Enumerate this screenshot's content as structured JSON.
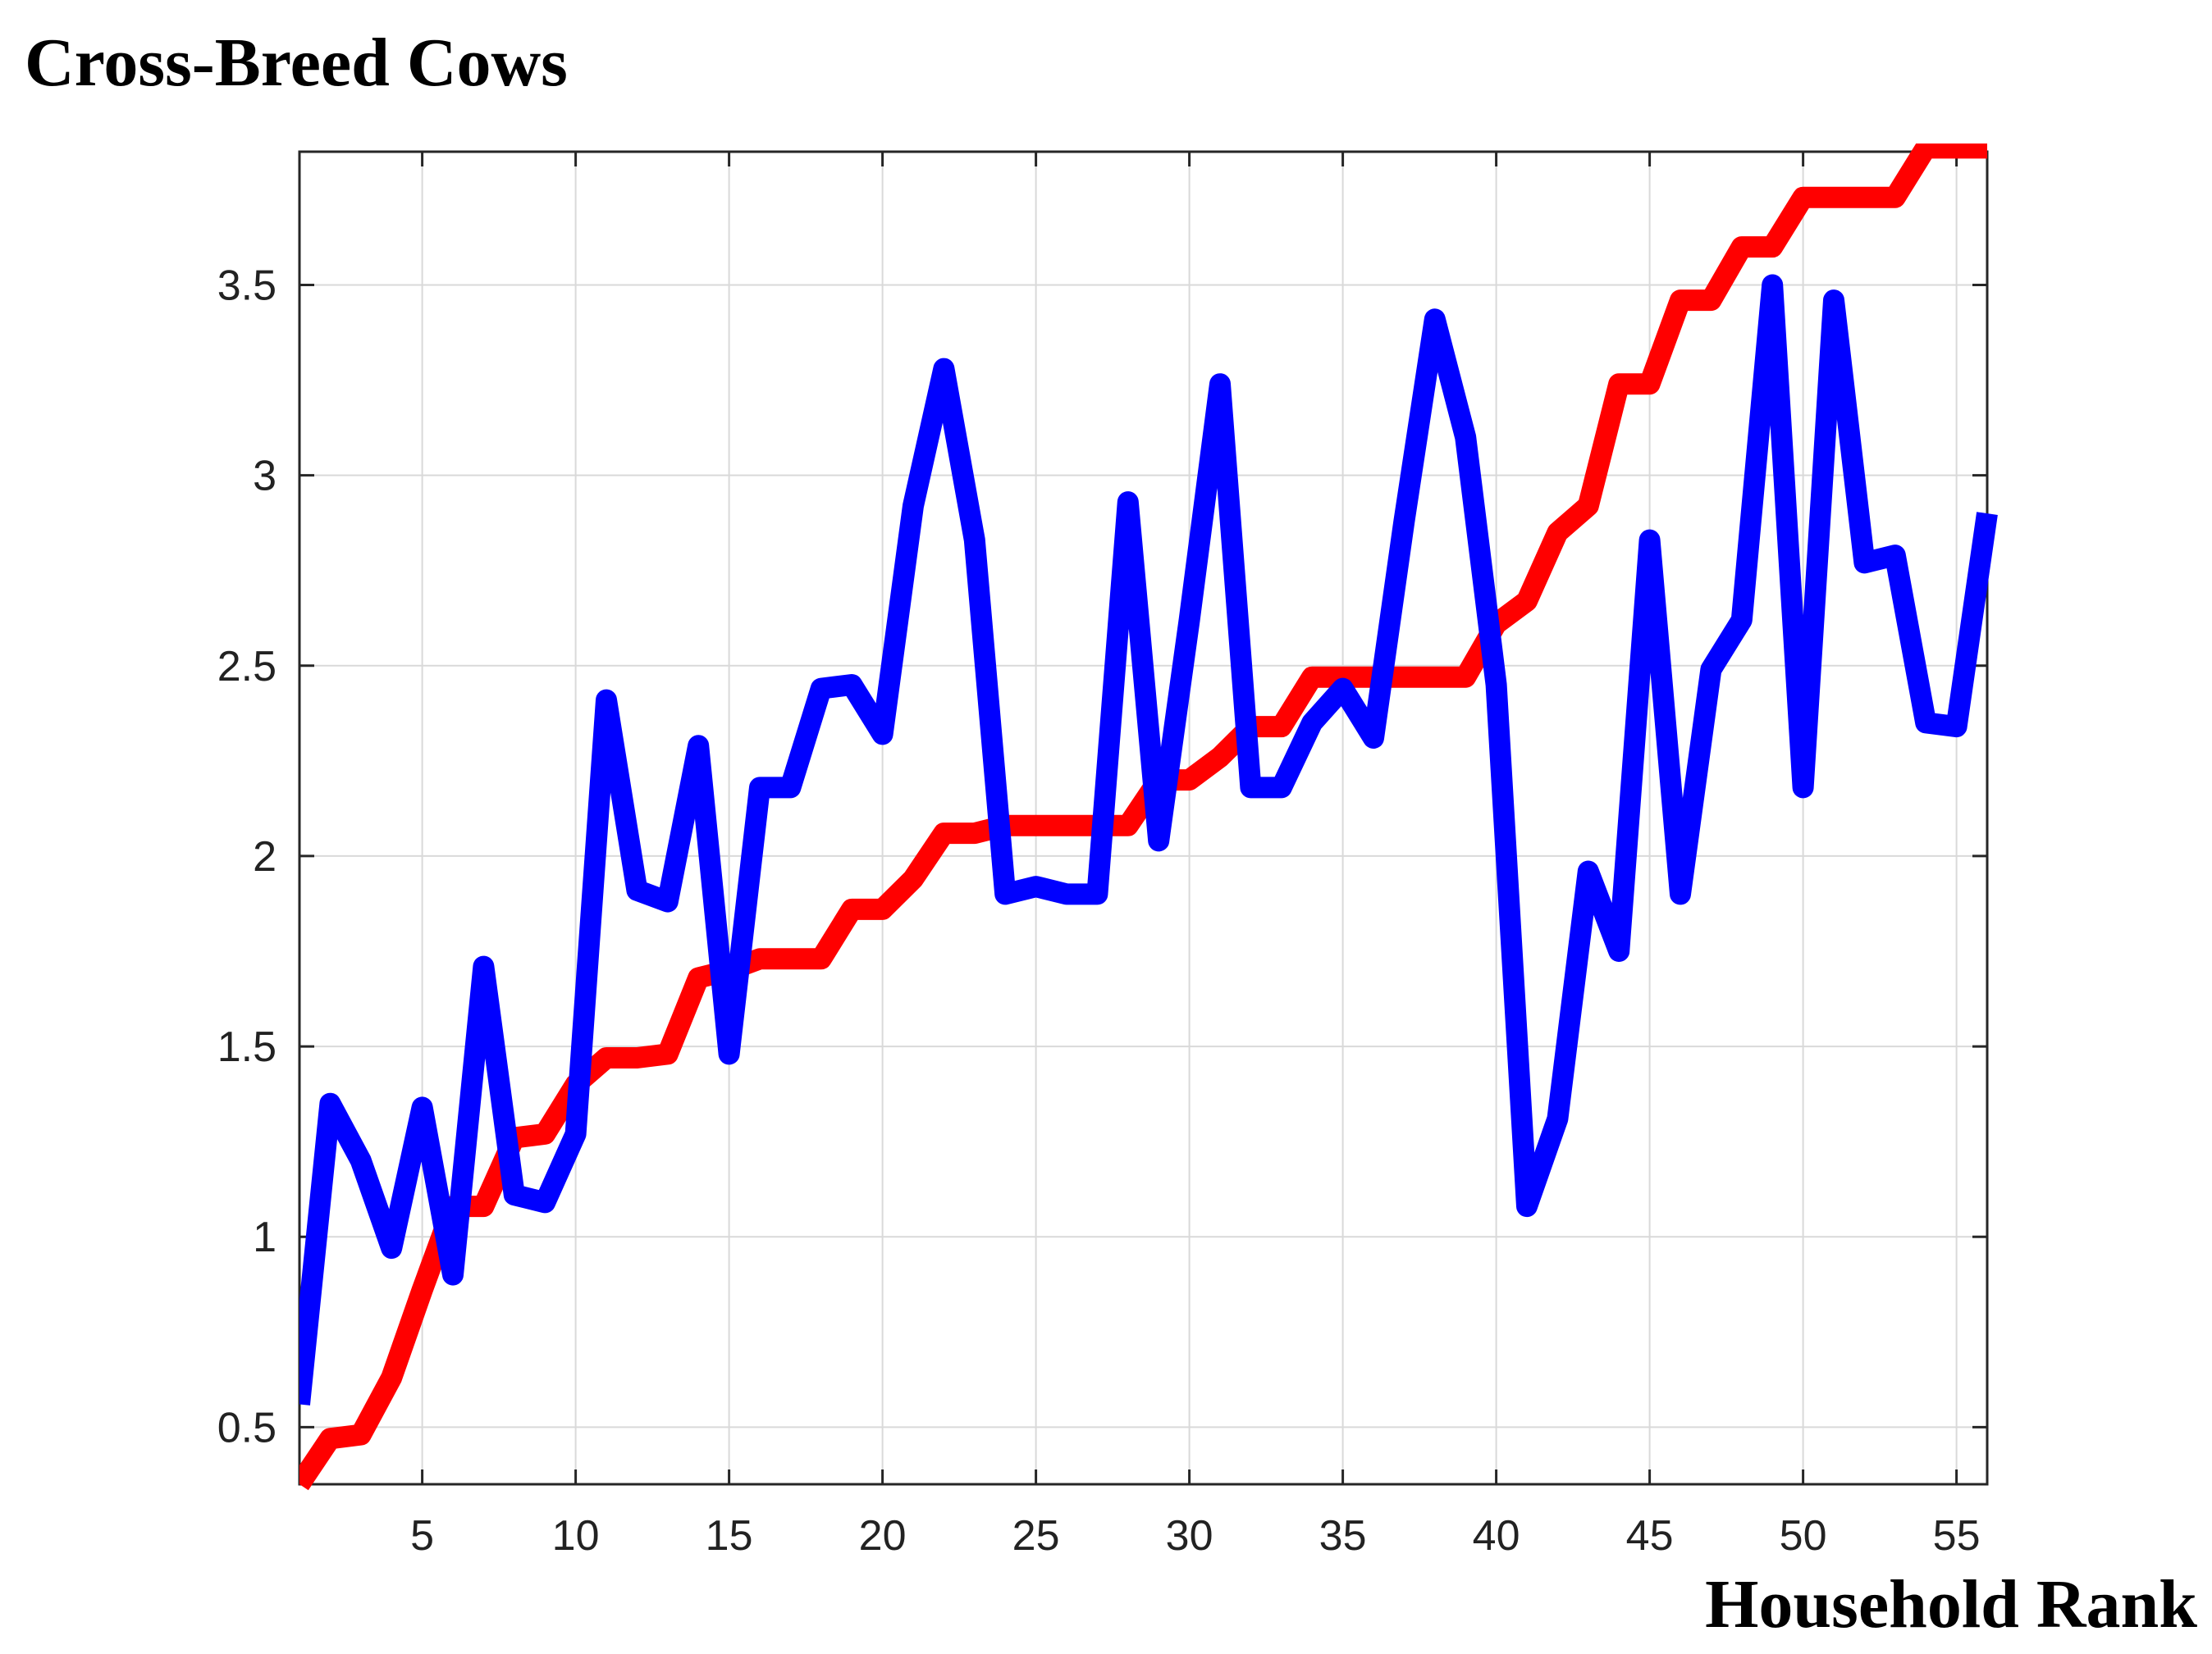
{
  "chart_data": {
    "type": "line",
    "title": "Cross-Breed Cows",
    "xlabel": "Household Rank",
    "ylabel": "",
    "xlim": [
      1,
      56
    ],
    "ylim": [
      0.35,
      3.85
    ],
    "xticks": [
      5,
      10,
      15,
      20,
      25,
      30,
      35,
      40,
      45,
      50,
      55
    ],
    "yticks": [
      0.5,
      1,
      1.5,
      2,
      2.5,
      3,
      3.5
    ],
    "ytick_labels": [
      "0.5",
      "1",
      "1.5",
      "2",
      "2.5",
      "3",
      "3.5"
    ],
    "grid": true,
    "series": [
      {
        "color": "#ff0000",
        "x": [
          1,
          2,
          3,
          4,
          5,
          6,
          7,
          8,
          9,
          10,
          11,
          12,
          13,
          14,
          15,
          16,
          17,
          18,
          19,
          20,
          21,
          22,
          23,
          24,
          25,
          26,
          27,
          28,
          29,
          30,
          31,
          32,
          33,
          34,
          35,
          36,
          37,
          38,
          39,
          40,
          41,
          42,
          43,
          44,
          45,
          46,
          47,
          48,
          49,
          50,
          51,
          52,
          53,
          54,
          55,
          56
        ],
        "values": [
          0.35,
          0.47,
          0.48,
          0.63,
          0.86,
          1.08,
          1.08,
          1.26,
          1.27,
          1.4,
          1.47,
          1.47,
          1.48,
          1.68,
          1.7,
          1.73,
          1.73,
          1.73,
          1.86,
          1.86,
          1.94,
          2.06,
          2.06,
          2.08,
          2.08,
          2.08,
          2.08,
          2.08,
          2.2,
          2.2,
          2.26,
          2.34,
          2.34,
          2.47,
          2.47,
          2.47,
          2.47,
          2.47,
          2.47,
          2.61,
          2.67,
          2.85,
          2.92,
          3.24,
          3.24,
          3.46,
          3.46,
          3.6,
          3.6,
          3.73,
          3.73,
          3.73,
          3.73,
          3.86,
          3.86,
          3.86
        ]
      },
      {
        "color": "#0000ff",
        "x": [
          1,
          2,
          3,
          4,
          5,
          6,
          7,
          8,
          9,
          10,
          11,
          12,
          13,
          14,
          15,
          16,
          17,
          18,
          19,
          20,
          21,
          22,
          23,
          24,
          25,
          26,
          27,
          28,
          29,
          30,
          31,
          32,
          33,
          34,
          35,
          36,
          37,
          38,
          39,
          40,
          41,
          42,
          43,
          44,
          45,
          46,
          47,
          48,
          49,
          50,
          51,
          52,
          53,
          54,
          55,
          56
        ],
        "values": [
          0.56,
          1.35,
          1.2,
          0.97,
          1.34,
          0.9,
          1.71,
          1.11,
          1.09,
          1.27,
          2.41,
          1.91,
          1.88,
          2.29,
          1.48,
          2.18,
          2.18,
          2.44,
          2.45,
          2.32,
          2.92,
          3.28,
          2.83,
          1.9,
          1.92,
          1.9,
          1.9,
          2.93,
          2.04,
          2.62,
          3.24,
          2.18,
          2.18,
          2.35,
          2.44,
          2.31,
          2.88,
          3.41,
          3.1,
          2.45,
          1.08,
          1.31,
          1.96,
          1.75,
          2.83,
          1.9,
          2.49,
          2.62,
          3.5,
          2.18,
          3.46,
          2.77,
          2.79,
          2.35,
          2.34,
          2.9
        ]
      }
    ]
  }
}
